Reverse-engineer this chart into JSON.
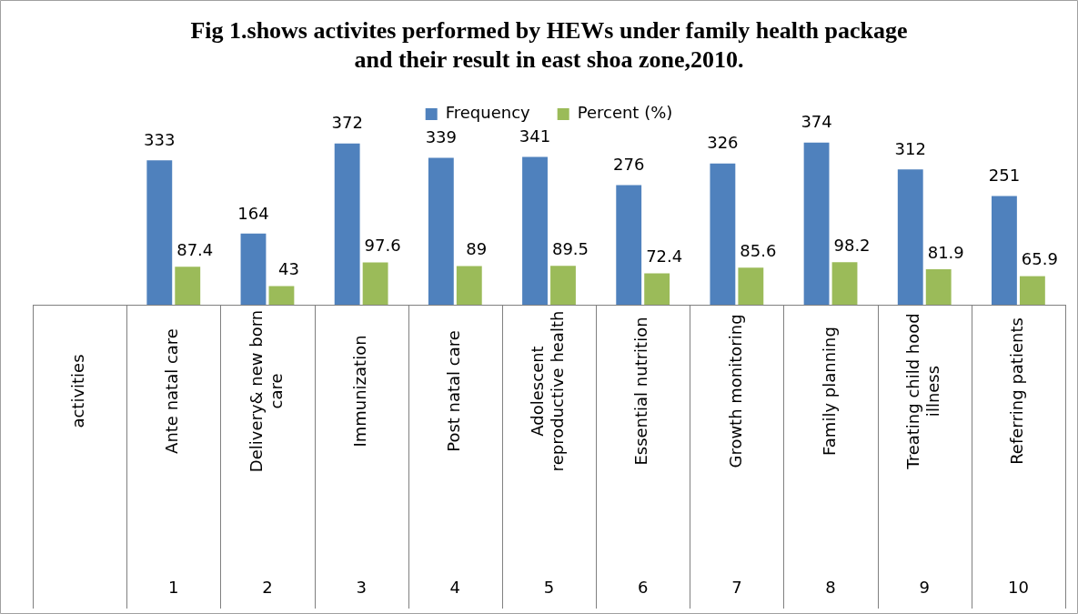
{
  "chart_data": {
    "type": "bar",
    "title": "Fig 1.shows activites performed by HEWs under family health package and their result in east shoa zone,2010.",
    "categories": [
      "activities",
      "Ante natal care",
      "Delivery& new born care",
      "Immunization",
      "Post natal care",
      "Adolescent reproductive health",
      "Essential nutrition",
      "Growth monitoring",
      "Family planning",
      "Treating child hood illness",
      "Referring patients"
    ],
    "series": [
      {
        "name": "Frequency",
        "color": "#4f81bd",
        "values": [
          null,
          333,
          164,
          372,
          339,
          341,
          276,
          326,
          374,
          312,
          251
        ]
      },
      {
        "name": "Percent (%)",
        "color": "#9bbb59",
        "values": [
          null,
          87.4,
          43,
          97.6,
          89,
          89.5,
          72.4,
          85.6,
          98.2,
          81.9,
          65.9
        ]
      }
    ],
    "data_labels": true,
    "legend": "top",
    "grid": false,
    "annotations": [
      "1",
      "2",
      "3",
      "4",
      "5",
      "6",
      "7",
      "8",
      "9",
      "10"
    ]
  }
}
